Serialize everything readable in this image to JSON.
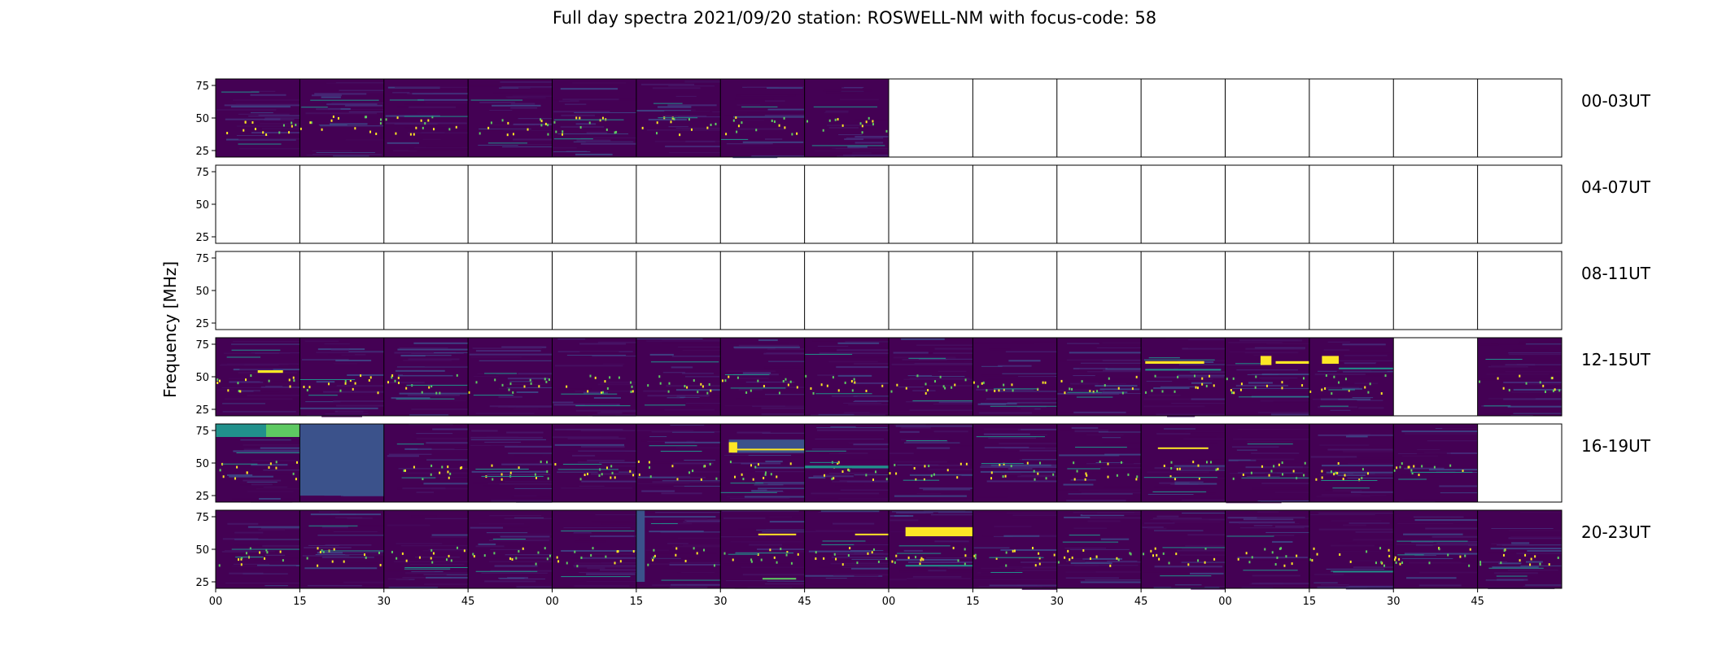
{
  "chart_data": {
    "type": "heatmap",
    "title": "Full day spectra 2021/09/20 station: ROSWELL-NM with focus-code: 58",
    "ylabel": "Frequency [MHz]",
    "xlabel": "",
    "ylim": [
      20,
      80
    ],
    "y_ticks": [
      25,
      50,
      75
    ],
    "x_ticks": [
      "00",
      "15",
      "30",
      "45",
      "00",
      "15",
      "30",
      "45",
      "00",
      "15",
      "30",
      "45",
      "00",
      "15",
      "30",
      "45"
    ],
    "colormap": {
      "background": "#440154",
      "mid": "#3b528b",
      "teal": "#21918c",
      "green": "#5ec962",
      "yellow": "#fde725"
    },
    "rows": [
      {
        "label": "00-03UT",
        "panels": [
          1,
          1,
          1,
          1,
          1,
          1,
          1,
          1,
          0,
          0,
          0,
          0,
          0,
          0,
          0,
          0
        ],
        "features": []
      },
      {
        "label": "04-07UT",
        "panels": [
          0,
          0,
          0,
          0,
          0,
          0,
          0,
          0,
          0,
          0,
          0,
          0,
          0,
          0,
          0,
          0
        ],
        "features": []
      },
      {
        "label": "08-11UT",
        "panels": [
          0,
          0,
          0,
          0,
          0,
          0,
          0,
          0,
          0,
          0,
          0,
          0,
          0,
          0,
          0,
          0
        ],
        "features": []
      },
      {
        "label": "12-15UT",
        "panels": [
          1,
          1,
          1,
          1,
          1,
          1,
          1,
          1,
          1,
          1,
          1,
          1,
          1,
          1,
          0,
          1
        ],
        "features": [
          {
            "panel": 0,
            "t0": 0.5,
            "t1": 0.8,
            "f0": 53,
            "f1": 55,
            "color": "yellow"
          },
          {
            "panel": 11,
            "t0": 0.05,
            "t1": 0.75,
            "f0": 60,
            "f1": 62,
            "color": "yellow"
          },
          {
            "panel": 11,
            "t0": 0.05,
            "t1": 0.95,
            "f0": 55,
            "f1": 56,
            "color": "teal"
          },
          {
            "panel": 12,
            "t0": 0.42,
            "t1": 0.55,
            "f0": 59,
            "f1": 66,
            "color": "yellow"
          },
          {
            "panel": 12,
            "t0": 0.6,
            "t1": 1.0,
            "f0": 60,
            "f1": 62,
            "color": "yellow"
          },
          {
            "panel": 13,
            "t0": 0.15,
            "t1": 0.35,
            "f0": 60,
            "f1": 66,
            "color": "yellow"
          },
          {
            "panel": 13,
            "t0": 0.35,
            "t1": 1.0,
            "f0": 56,
            "f1": 57,
            "color": "teal"
          }
        ]
      },
      {
        "label": "16-19UT",
        "panels": [
          1,
          1,
          1,
          1,
          1,
          1,
          1,
          1,
          1,
          1,
          1,
          1,
          1,
          1,
          1,
          0
        ],
        "features": [
          {
            "panel": 0,
            "t0": 0.0,
            "t1": 1.0,
            "f0": 70,
            "f1": 80,
            "color": "teal"
          },
          {
            "panel": 0,
            "t0": 0.6,
            "t1": 1.0,
            "f0": 70,
            "f1": 80,
            "color": "green"
          },
          {
            "panel": 1,
            "t0": 0.0,
            "t1": 1.0,
            "f0": 25,
            "f1": 80,
            "color": "mid"
          },
          {
            "panel": 6,
            "t0": 0.1,
            "t1": 1.0,
            "f0": 58,
            "f1": 68,
            "color": "mid"
          },
          {
            "panel": 6,
            "t0": 0.1,
            "t1": 0.2,
            "f0": 58,
            "f1": 66,
            "color": "yellow"
          },
          {
            "panel": 6,
            "t0": 0.2,
            "t1": 1.0,
            "f0": 60,
            "f1": 61,
            "color": "yellow"
          },
          {
            "panel": 7,
            "t0": 0.0,
            "t1": 1.0,
            "f0": 46,
            "f1": 48,
            "color": "teal"
          },
          {
            "panel": 11,
            "t0": 0.2,
            "t1": 0.8,
            "f0": 61,
            "f1": 62,
            "color": "yellow"
          }
        ]
      },
      {
        "label": "20-23UT",
        "panels": [
          1,
          1,
          1,
          1,
          1,
          1,
          1,
          1,
          1,
          1,
          1,
          1,
          1,
          1,
          1,
          1
        ],
        "features": [
          {
            "panel": 6,
            "t0": 0.45,
            "t1": 0.9,
            "f0": 61,
            "f1": 62,
            "color": "yellow"
          },
          {
            "panel": 6,
            "t0": 0.5,
            "t1": 0.9,
            "f0": 27,
            "f1": 28,
            "color": "green"
          },
          {
            "panel": 7,
            "t0": 0.6,
            "t1": 1.0,
            "f0": 61,
            "f1": 62,
            "color": "yellow"
          },
          {
            "panel": 8,
            "t0": 0.2,
            "t1": 1.0,
            "f0": 60,
            "f1": 67,
            "color": "yellow"
          },
          {
            "panel": 8,
            "t0": 0.2,
            "t1": 1.0,
            "f0": 37,
            "f1": 38,
            "color": "teal"
          },
          {
            "panel": 5,
            "t0": 0.0,
            "t1": 0.1,
            "f0": 25,
            "f1": 80,
            "color": "mid"
          }
        ]
      }
    ]
  }
}
